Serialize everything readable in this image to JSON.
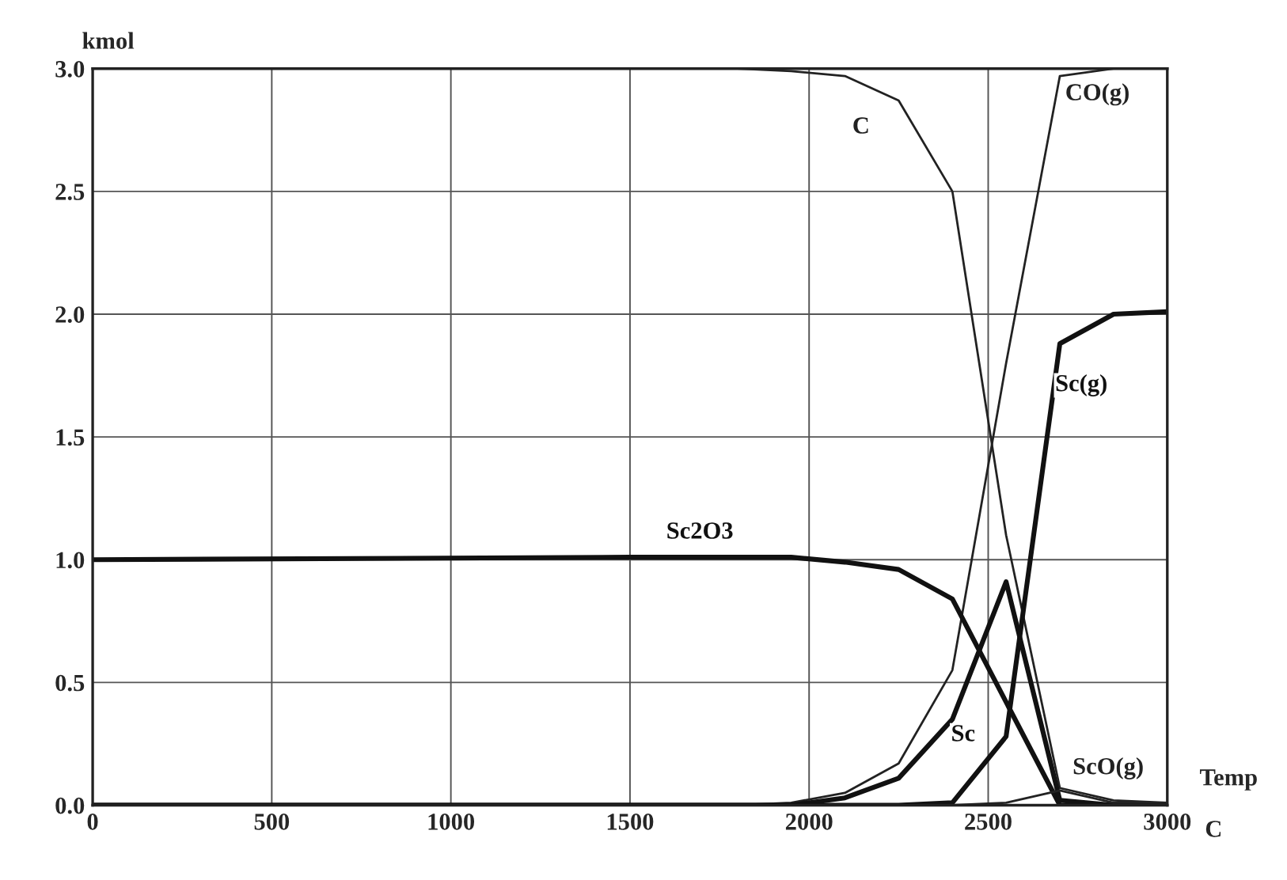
{
  "chart_data": {
    "type": "line",
    "xlabel": "Temp",
    "ylabel": "kmol",
    "x": [
      0,
      1500,
      1650,
      1800,
      1950,
      2100,
      2250,
      2400,
      2550,
      2700,
      2850,
      3000
    ],
    "series": [
      {
        "name": "C",
        "color": "#222222",
        "values": [
          3.0,
          3.0,
          3.0,
          3.0,
          2.99,
          2.97,
          2.87,
          2.5,
          1.1,
          0.07,
          0.02,
          0.01
        ]
      },
      {
        "name": "CO(g)",
        "color": "#222222",
        "values": [
          0,
          0,
          0,
          0,
          0.01,
          0.05,
          0.17,
          0.55,
          1.8,
          2.97,
          3.0,
          3.0
        ]
      },
      {
        "name": "Sc2O3",
        "color": "#111111",
        "values": [
          1.0,
          1.01,
          1.01,
          1.01,
          1.01,
          0.99,
          0.96,
          0.84,
          0.42,
          0.0,
          0.0,
          0.0
        ]
      },
      {
        "name": "Sc",
        "color": "#111111",
        "values": [
          0,
          0,
          0,
          0,
          0.0,
          0.03,
          0.11,
          0.35,
          0.91,
          0.02,
          0.0,
          0.0
        ]
      },
      {
        "name": "Sc(g)",
        "color": "#111111",
        "values": [
          0,
          0,
          0,
          0,
          0,
          0,
          0,
          0.01,
          0.28,
          1.88,
          2.0,
          2.01
        ]
      },
      {
        "name": "ScO(g)",
        "color": "#222222",
        "values": [
          0,
          0,
          0,
          0,
          0,
          0,
          0,
          0,
          0.01,
          0.06,
          0.01,
          0.01
        ]
      }
    ],
    "xlim": [
      0,
      3000
    ],
    "ylim": [
      0,
      3
    ],
    "xticks": [
      0,
      500,
      1000,
      1500,
      2000,
      2500,
      3000
    ],
    "yticks": [
      {
        "value": 0,
        "label": "0.0"
      },
      {
        "value": 0.5,
        "label": "0.5"
      },
      {
        "value": 1,
        "label": "1.0"
      },
      {
        "value": 1.5,
        "label": "1.5"
      },
      {
        "value": 2,
        "label": "2.0"
      },
      {
        "value": 2.5,
        "label": "2.5"
      },
      {
        "value": 3,
        "label": "3.0"
      }
    ],
    "grid": true,
    "legend": false,
    "marker": "none",
    "line_style": "solid",
    "annotations": [
      "C"
    ]
  }
}
